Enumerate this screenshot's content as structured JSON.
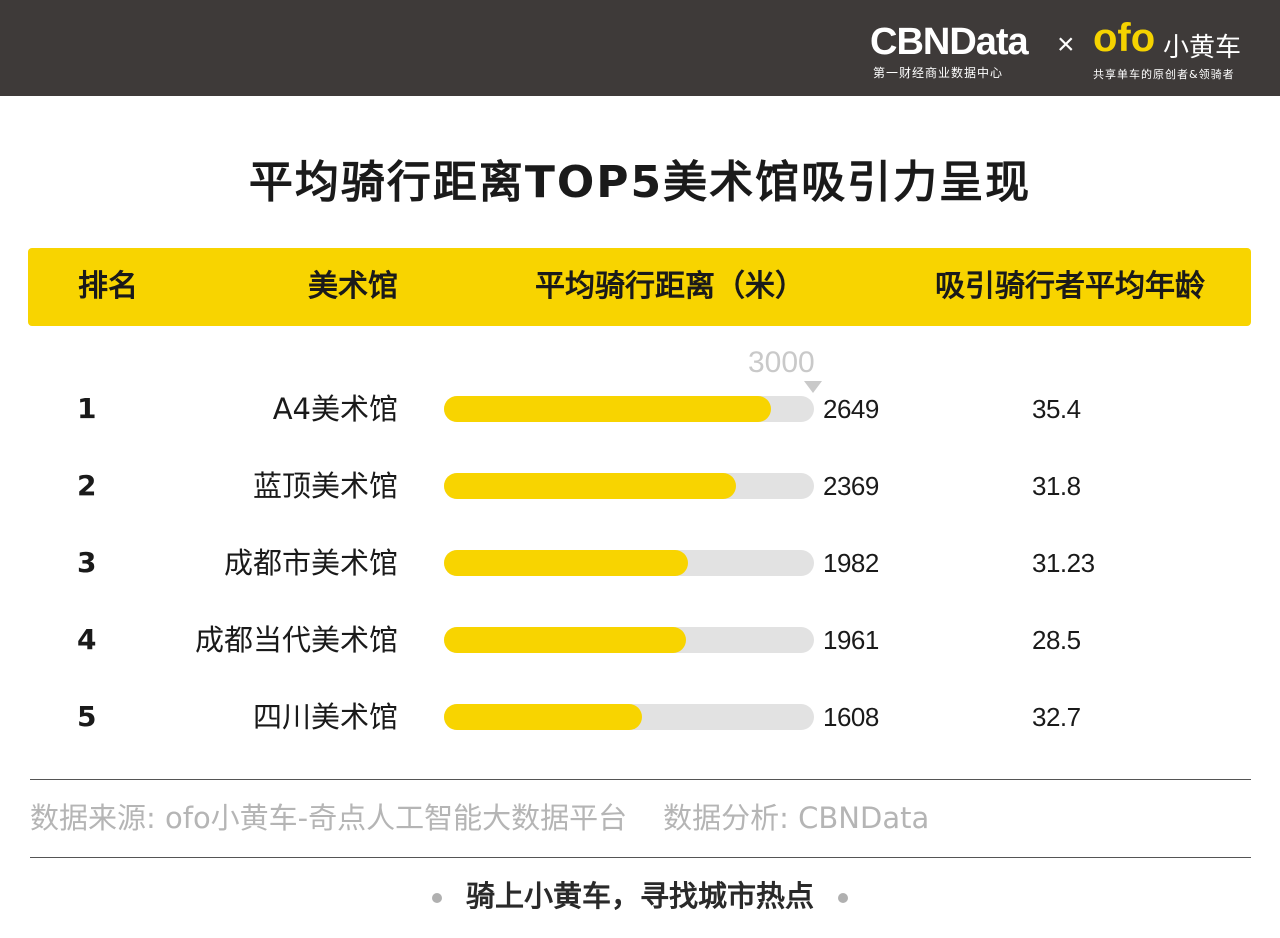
{
  "header": {
    "brand_cbn": "CBNData",
    "brand_cbn_sub": "第一财经商业数据中心",
    "brand_x": "×",
    "brand_ofo": "ofo",
    "brand_ofo_cn": "小黄车",
    "brand_ofo_sub": "共享单车的原创者&领骑者"
  },
  "title": "平均骑行距离TOP5美术馆吸引力呈现",
  "columns": {
    "rank": "排名",
    "museum": "美术馆",
    "distance": "平均骑行距离（米）",
    "age": "吸引骑行者平均年龄"
  },
  "scale_label": "3000",
  "rows": [
    {
      "rank": "1",
      "museum": "A4美术馆",
      "distance": "2649",
      "age": "35.4"
    },
    {
      "rank": "2",
      "museum": "蓝顶美术馆",
      "distance": "2369",
      "age": "31.8"
    },
    {
      "rank": "3",
      "museum": "成都市美术馆",
      "distance": "1982",
      "age": "31.23"
    },
    {
      "rank": "4",
      "museum": "成都当代美术馆",
      "distance": "1961",
      "age": "28.5"
    },
    {
      "rank": "5",
      "museum": "四川美术馆",
      "distance": "1608",
      "age": "32.7"
    }
  ],
  "footer": {
    "source": "数据来源: ofo小黄车-奇点人工智能大数据平台",
    "analysis": "数据分析: CBNData",
    "slogan": "骑上小黄车，寻找城市热点"
  },
  "colors": {
    "accent": "#f8d400",
    "track": "#e2e2e2",
    "topbar": "#3e3a39"
  },
  "chart_data": {
    "type": "bar",
    "title": "平均骑行距离TOP5美术馆吸引力呈现",
    "categories": [
      "A4美术馆",
      "蓝顶美术馆",
      "成都市美术馆",
      "成都当代美术馆",
      "四川美术馆"
    ],
    "series": [
      {
        "name": "平均骑行距离（米）",
        "values": [
          2649,
          2369,
          1982,
          1961,
          1608
        ]
      },
      {
        "name": "吸引骑行者平均年龄",
        "values": [
          35.4,
          31.8,
          31.23,
          28.5,
          32.7
        ]
      }
    ],
    "xlim": [
      0,
      3000
    ],
    "orientation": "horizontal"
  }
}
